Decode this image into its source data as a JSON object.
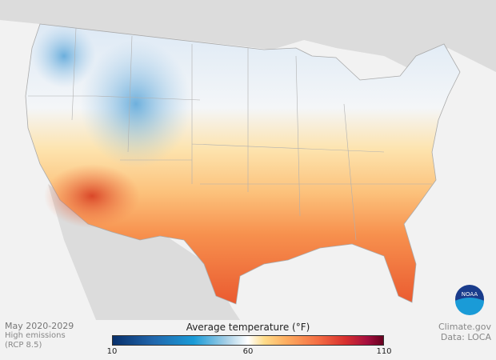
{
  "map": {
    "subject": "Contiguous United States average temperature",
    "basemap_colors": {
      "land_outside": "#dcdcdc",
      "water": "#f2f2f2",
      "borders": "#999999"
    }
  },
  "info": {
    "period": "May 2020-2029",
    "scenario": "High emissions",
    "scenario_code": "(RCP 8.5)"
  },
  "credit": {
    "source": "Climate.gov",
    "data": "Data: LOCA"
  },
  "legend": {
    "title": "Average temperature (°F)",
    "min": "10",
    "mid": "60",
    "max": "110",
    "colors": [
      "#08306b",
      "#2166ac",
      "#1a9bd7",
      "#a6cfe6",
      "#ffffff",
      "#fedc8a",
      "#fdae61",
      "#f46d43",
      "#d7302f",
      "#a50f3f",
      "#67001f"
    ]
  },
  "logo": {
    "text": "NOAA"
  }
}
